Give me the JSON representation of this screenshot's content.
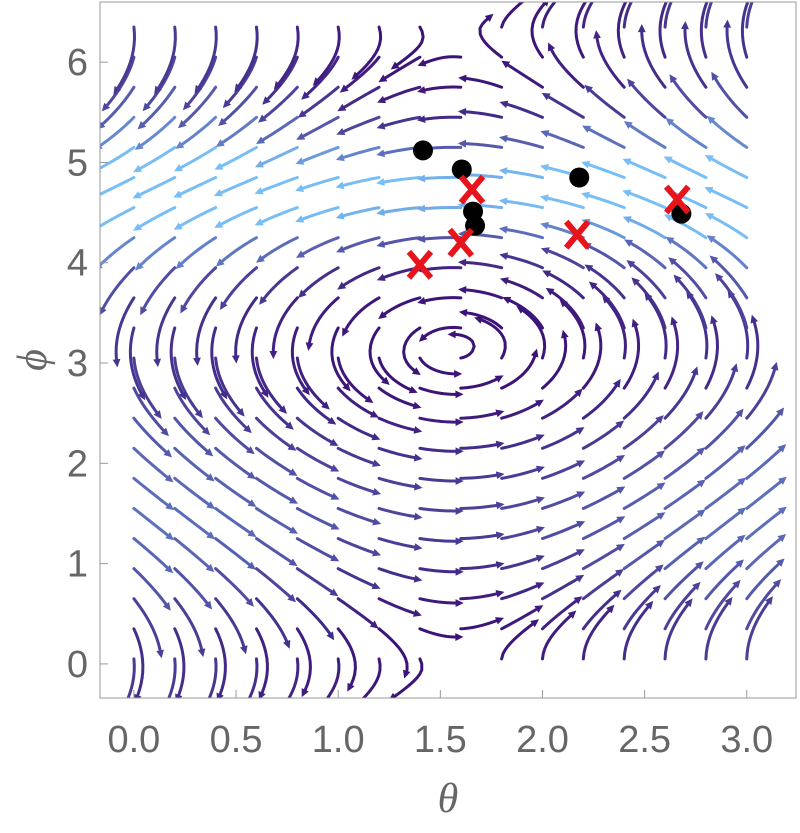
{
  "chart_data": {
    "type": "scatter",
    "x_label": "θ",
    "y_label": "ϕ",
    "xlim": [
      -0.166,
      3.241
    ],
    "ylim": [
      -0.34,
      6.6
    ],
    "xticks": [
      {
        "value": 0,
        "label": "0.0"
      },
      0.5,
      {
        "value": 1,
        "label": "1.0"
      },
      1.5,
      {
        "value": 2,
        "label": "2.0"
      },
      2.5,
      {
        "value": 3,
        "label": "3.0"
      }
    ],
    "yticks": [
      0,
      1,
      2,
      3,
      4,
      5,
      6
    ],
    "series": [
      {
        "color": "#000000",
        "marker": "circle",
        "x": [
          1.415,
          1.605,
          1.66,
          1.67,
          2.18,
          2.68
        ],
        "values": [
          5.12,
          4.93,
          4.51,
          4.37,
          4.85,
          4.49
        ]
      },
      {
        "color": "#e8141c",
        "marker": "x",
        "x": [
          1.4,
          1.6,
          1.655,
          2.17,
          2.66
        ],
        "values": [
          3.98,
          4.2,
          4.73,
          4.28,
          4.63
        ]
      }
    ]
  }
}
